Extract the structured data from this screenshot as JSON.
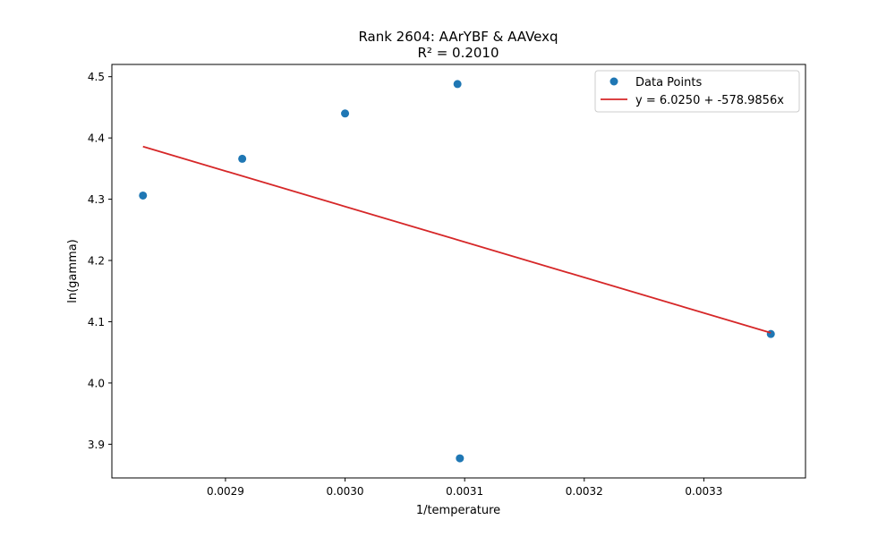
{
  "chart_data": {
    "type": "scatter",
    "title": "Rank 2604: AArYBF & AAVexq",
    "subtitle": "R² = 0.2010",
    "xlabel": "1/temperature",
    "ylabel": "ln(gamma)",
    "xlim": [
      0.002805,
      0.003385
    ],
    "ylim": [
      3.845,
      4.52
    ],
    "xticks": [
      0.0029,
      0.003,
      0.0031,
      0.0032,
      0.0033
    ],
    "xtick_labels": [
      "0.0029",
      "0.0030",
      "0.0031",
      "0.0032",
      "0.0033"
    ],
    "yticks": [
      3.9,
      4.0,
      4.1,
      4.2,
      4.3,
      4.4,
      4.5
    ],
    "ytick_labels": [
      "3.9",
      "4.0",
      "4.1",
      "4.2",
      "4.3",
      "4.4",
      "4.5"
    ],
    "grid": false,
    "legend_position": "top-right",
    "series": [
      {
        "name": "Data Points",
        "kind": "scatter",
        "color": "#1f77b4",
        "points": [
          {
            "x": 0.002831,
            "y": 4.306
          },
          {
            "x": 0.002914,
            "y": 4.366
          },
          {
            "x": 0.003,
            "y": 4.44
          },
          {
            "x": 0.003094,
            "y": 4.488
          },
          {
            "x": 0.003096,
            "y": 3.877
          },
          {
            "x": 0.003356,
            "y": 4.08
          }
        ]
      },
      {
        "name": "y = 6.0250 + -578.9856x",
        "kind": "line",
        "color": "#d62728",
        "intercept": 6.025,
        "slope": -578.9856,
        "x_range": [
          0.002831,
          0.003356
        ]
      }
    ]
  }
}
